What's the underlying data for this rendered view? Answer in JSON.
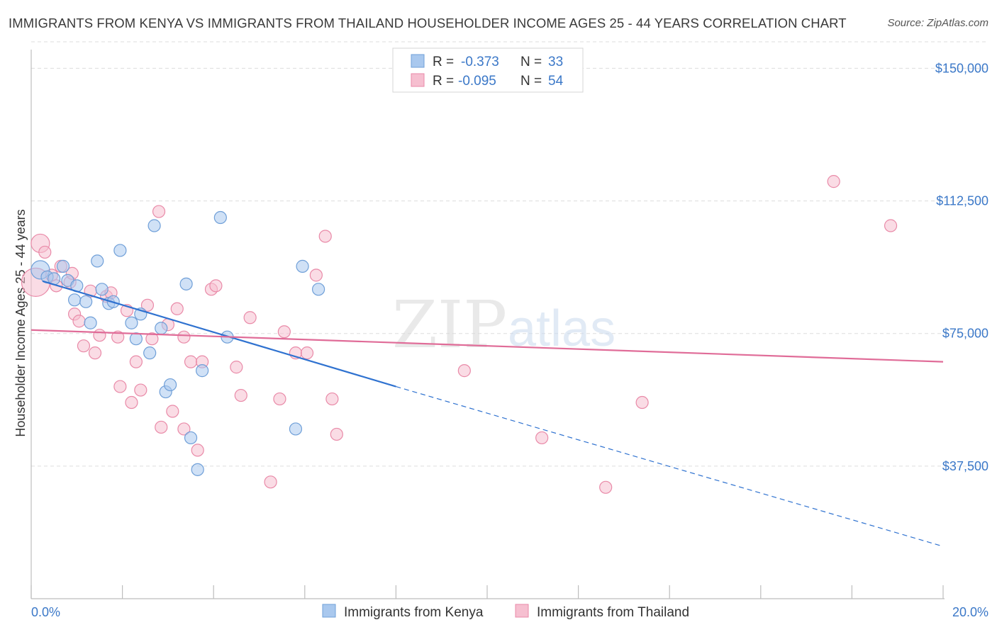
{
  "title": "IMMIGRANTS FROM KENYA VS IMMIGRANTS FROM THAILAND HOUSEHOLDER INCOME AGES 25 - 44 YEARS CORRELATION CHART",
  "source": "Source: ZipAtlas.com",
  "watermark": {
    "zip": "ZIP",
    "atlas": "atlas"
  },
  "legend": {
    "kenya": {
      "r_label": "R = ",
      "r_value": "-0.373",
      "n_label": "N = ",
      "n_value": "33"
    },
    "thailand": {
      "r_label": "R = ",
      "r_value": "-0.095",
      "n_label": "N = ",
      "n_value": "54"
    }
  },
  "colors": {
    "kenya_fill": "#a9c8ee",
    "kenya_stroke": "#6f9fd8",
    "kenya_line": "#2f72d0",
    "thailand_fill": "#f6bfd0",
    "thailand_stroke": "#e98aa8",
    "thailand_line": "#e06c98",
    "tick_label": "#3b78c8"
  },
  "chart_data": {
    "type": "scatter",
    "title": "IMMIGRANTS FROM KENYA VS IMMIGRANTS FROM THAILAND HOUSEHOLDER INCOME AGES 25 - 44 YEARS CORRELATION CHART",
    "xlabel": "",
    "ylabel": "Householder Income Ages 25 - 44 years",
    "xlim": [
      0,
      20
    ],
    "ylim": [
      0,
      157500
    ],
    "x_tick_labels": [
      {
        "value": 0,
        "label": "0.0%"
      },
      {
        "value": 20,
        "label": "20.0%"
      }
    ],
    "y_ticks": [
      {
        "value": 37500,
        "label": "$37,500"
      },
      {
        "value": 75000,
        "label": "$75,000"
      },
      {
        "value": 112500,
        "label": "$112,500"
      },
      {
        "value": 150000,
        "label": "$150,000"
      }
    ],
    "grid": true,
    "legend_position": "bottom-center",
    "series": [
      {
        "name": "Immigrants from Kenya",
        "r": -0.373,
        "n": 33,
        "trend": {
          "x0": 0.25,
          "y0": 89800,
          "x1": 8.0,
          "y1": 60000,
          "dashed_to_x": 20,
          "dashed_to_y": 14800
        },
        "points": [
          {
            "x": 0.2,
            "y": 93000,
            "s": 2
          },
          {
            "x": 0.35,
            "y": 91000,
            "s": 1
          },
          {
            "x": 0.5,
            "y": 90500,
            "s": 1
          },
          {
            "x": 0.7,
            "y": 94000,
            "s": 1
          },
          {
            "x": 0.8,
            "y": 90000,
            "s": 1
          },
          {
            "x": 1.0,
            "y": 88500,
            "s": 1
          },
          {
            "x": 0.95,
            "y": 84500,
            "s": 1
          },
          {
            "x": 1.2,
            "y": 84000,
            "s": 1
          },
          {
            "x": 1.3,
            "y": 78000,
            "s": 1
          },
          {
            "x": 1.45,
            "y": 95500,
            "s": 1
          },
          {
            "x": 1.55,
            "y": 87500,
            "s": 1
          },
          {
            "x": 1.7,
            "y": 83500,
            "s": 1
          },
          {
            "x": 1.8,
            "y": 84000,
            "s": 1
          },
          {
            "x": 1.95,
            "y": 98500,
            "s": 1
          },
          {
            "x": 2.2,
            "y": 78000,
            "s": 1
          },
          {
            "x": 2.3,
            "y": 73500,
            "s": 1
          },
          {
            "x": 2.4,
            "y": 80500,
            "s": 1
          },
          {
            "x": 2.6,
            "y": 69500,
            "s": 1
          },
          {
            "x": 2.7,
            "y": 105500,
            "s": 1
          },
          {
            "x": 2.85,
            "y": 76500,
            "s": 1
          },
          {
            "x": 2.95,
            "y": 58500,
            "s": 1
          },
          {
            "x": 3.05,
            "y": 60500,
            "s": 1
          },
          {
            "x": 3.4,
            "y": 89000,
            "s": 1
          },
          {
            "x": 3.5,
            "y": 45500,
            "s": 1
          },
          {
            "x": 3.65,
            "y": 36500,
            "s": 1
          },
          {
            "x": 3.75,
            "y": 64500,
            "s": 1
          },
          {
            "x": 4.15,
            "y": 107800,
            "s": 1
          },
          {
            "x": 4.3,
            "y": 74000,
            "s": 1
          },
          {
            "x": 5.8,
            "y": 48000,
            "s": 1
          },
          {
            "x": 5.95,
            "y": 94000,
            "s": 1
          },
          {
            "x": 6.3,
            "y": 87500,
            "s": 1
          }
        ]
      },
      {
        "name": "Immigrants from Thailand",
        "r": -0.095,
        "n": 54,
        "trend": {
          "x0": 0.0,
          "y0": 76000,
          "x1": 20.0,
          "y1": 67000
        },
        "points": [
          {
            "x": 0.1,
            "y": 89500,
            "s": 3
          },
          {
            "x": 0.2,
            "y": 100500,
            "s": 2
          },
          {
            "x": 0.3,
            "y": 98000,
            "s": 1
          },
          {
            "x": 0.45,
            "y": 91500,
            "s": 1
          },
          {
            "x": 0.55,
            "y": 88500,
            "s": 1
          },
          {
            "x": 0.65,
            "y": 94000,
            "s": 1
          },
          {
            "x": 0.85,
            "y": 89500,
            "s": 1
          },
          {
            "x": 0.9,
            "y": 92000,
            "s": 1
          },
          {
            "x": 0.95,
            "y": 80500,
            "s": 1
          },
          {
            "x": 1.05,
            "y": 78500,
            "s": 1
          },
          {
            "x": 1.15,
            "y": 71500,
            "s": 1
          },
          {
            "x": 1.3,
            "y": 87000,
            "s": 1
          },
          {
            "x": 1.4,
            "y": 69500,
            "s": 1
          },
          {
            "x": 1.5,
            "y": 74500,
            "s": 1
          },
          {
            "x": 1.65,
            "y": 85500,
            "s": 1
          },
          {
            "x": 1.75,
            "y": 86500,
            "s": 1
          },
          {
            "x": 1.9,
            "y": 74000,
            "s": 1
          },
          {
            "x": 1.95,
            "y": 60000,
            "s": 1
          },
          {
            "x": 2.1,
            "y": 81500,
            "s": 1
          },
          {
            "x": 2.2,
            "y": 55500,
            "s": 1
          },
          {
            "x": 2.3,
            "y": 67000,
            "s": 1
          },
          {
            "x": 2.4,
            "y": 59000,
            "s": 1
          },
          {
            "x": 2.55,
            "y": 83000,
            "s": 1
          },
          {
            "x": 2.65,
            "y": 73500,
            "s": 1
          },
          {
            "x": 2.8,
            "y": 109500,
            "s": 1
          },
          {
            "x": 2.85,
            "y": 48500,
            "s": 1
          },
          {
            "x": 3.0,
            "y": 77500,
            "s": 1
          },
          {
            "x": 3.1,
            "y": 53000,
            "s": 1
          },
          {
            "x": 3.2,
            "y": 82000,
            "s": 1
          },
          {
            "x": 3.35,
            "y": 48000,
            "s": 1
          },
          {
            "x": 3.35,
            "y": 74000,
            "s": 1
          },
          {
            "x": 3.5,
            "y": 67000,
            "s": 1
          },
          {
            "x": 3.65,
            "y": 42000,
            "s": 1
          },
          {
            "x": 3.75,
            "y": 67000,
            "s": 1
          },
          {
            "x": 3.95,
            "y": 87500,
            "s": 1
          },
          {
            "x": 4.05,
            "y": 88500,
            "s": 1
          },
          {
            "x": 4.5,
            "y": 65500,
            "s": 1
          },
          {
            "x": 4.6,
            "y": 57500,
            "s": 1
          },
          {
            "x": 4.8,
            "y": 79500,
            "s": 1
          },
          {
            "x": 5.25,
            "y": 33000,
            "s": 1
          },
          {
            "x": 5.45,
            "y": 56500,
            "s": 1
          },
          {
            "x": 5.55,
            "y": 75500,
            "s": 1
          },
          {
            "x": 5.8,
            "y": 69500,
            "s": 1
          },
          {
            "x": 6.05,
            "y": 69500,
            "s": 1
          },
          {
            "x": 6.25,
            "y": 91500,
            "s": 1
          },
          {
            "x": 6.45,
            "y": 102500,
            "s": 1
          },
          {
            "x": 6.6,
            "y": 56500,
            "s": 1
          },
          {
            "x": 6.7,
            "y": 46500,
            "s": 1
          },
          {
            "x": 9.5,
            "y": 64500,
            "s": 1
          },
          {
            "x": 11.2,
            "y": 45500,
            "s": 1
          },
          {
            "x": 12.6,
            "y": 31500,
            "s": 1
          },
          {
            "x": 13.4,
            "y": 55500,
            "s": 1
          },
          {
            "x": 17.6,
            "y": 118000,
            "s": 1
          },
          {
            "x": 18.85,
            "y": 105500,
            "s": 1
          }
        ]
      }
    ]
  }
}
